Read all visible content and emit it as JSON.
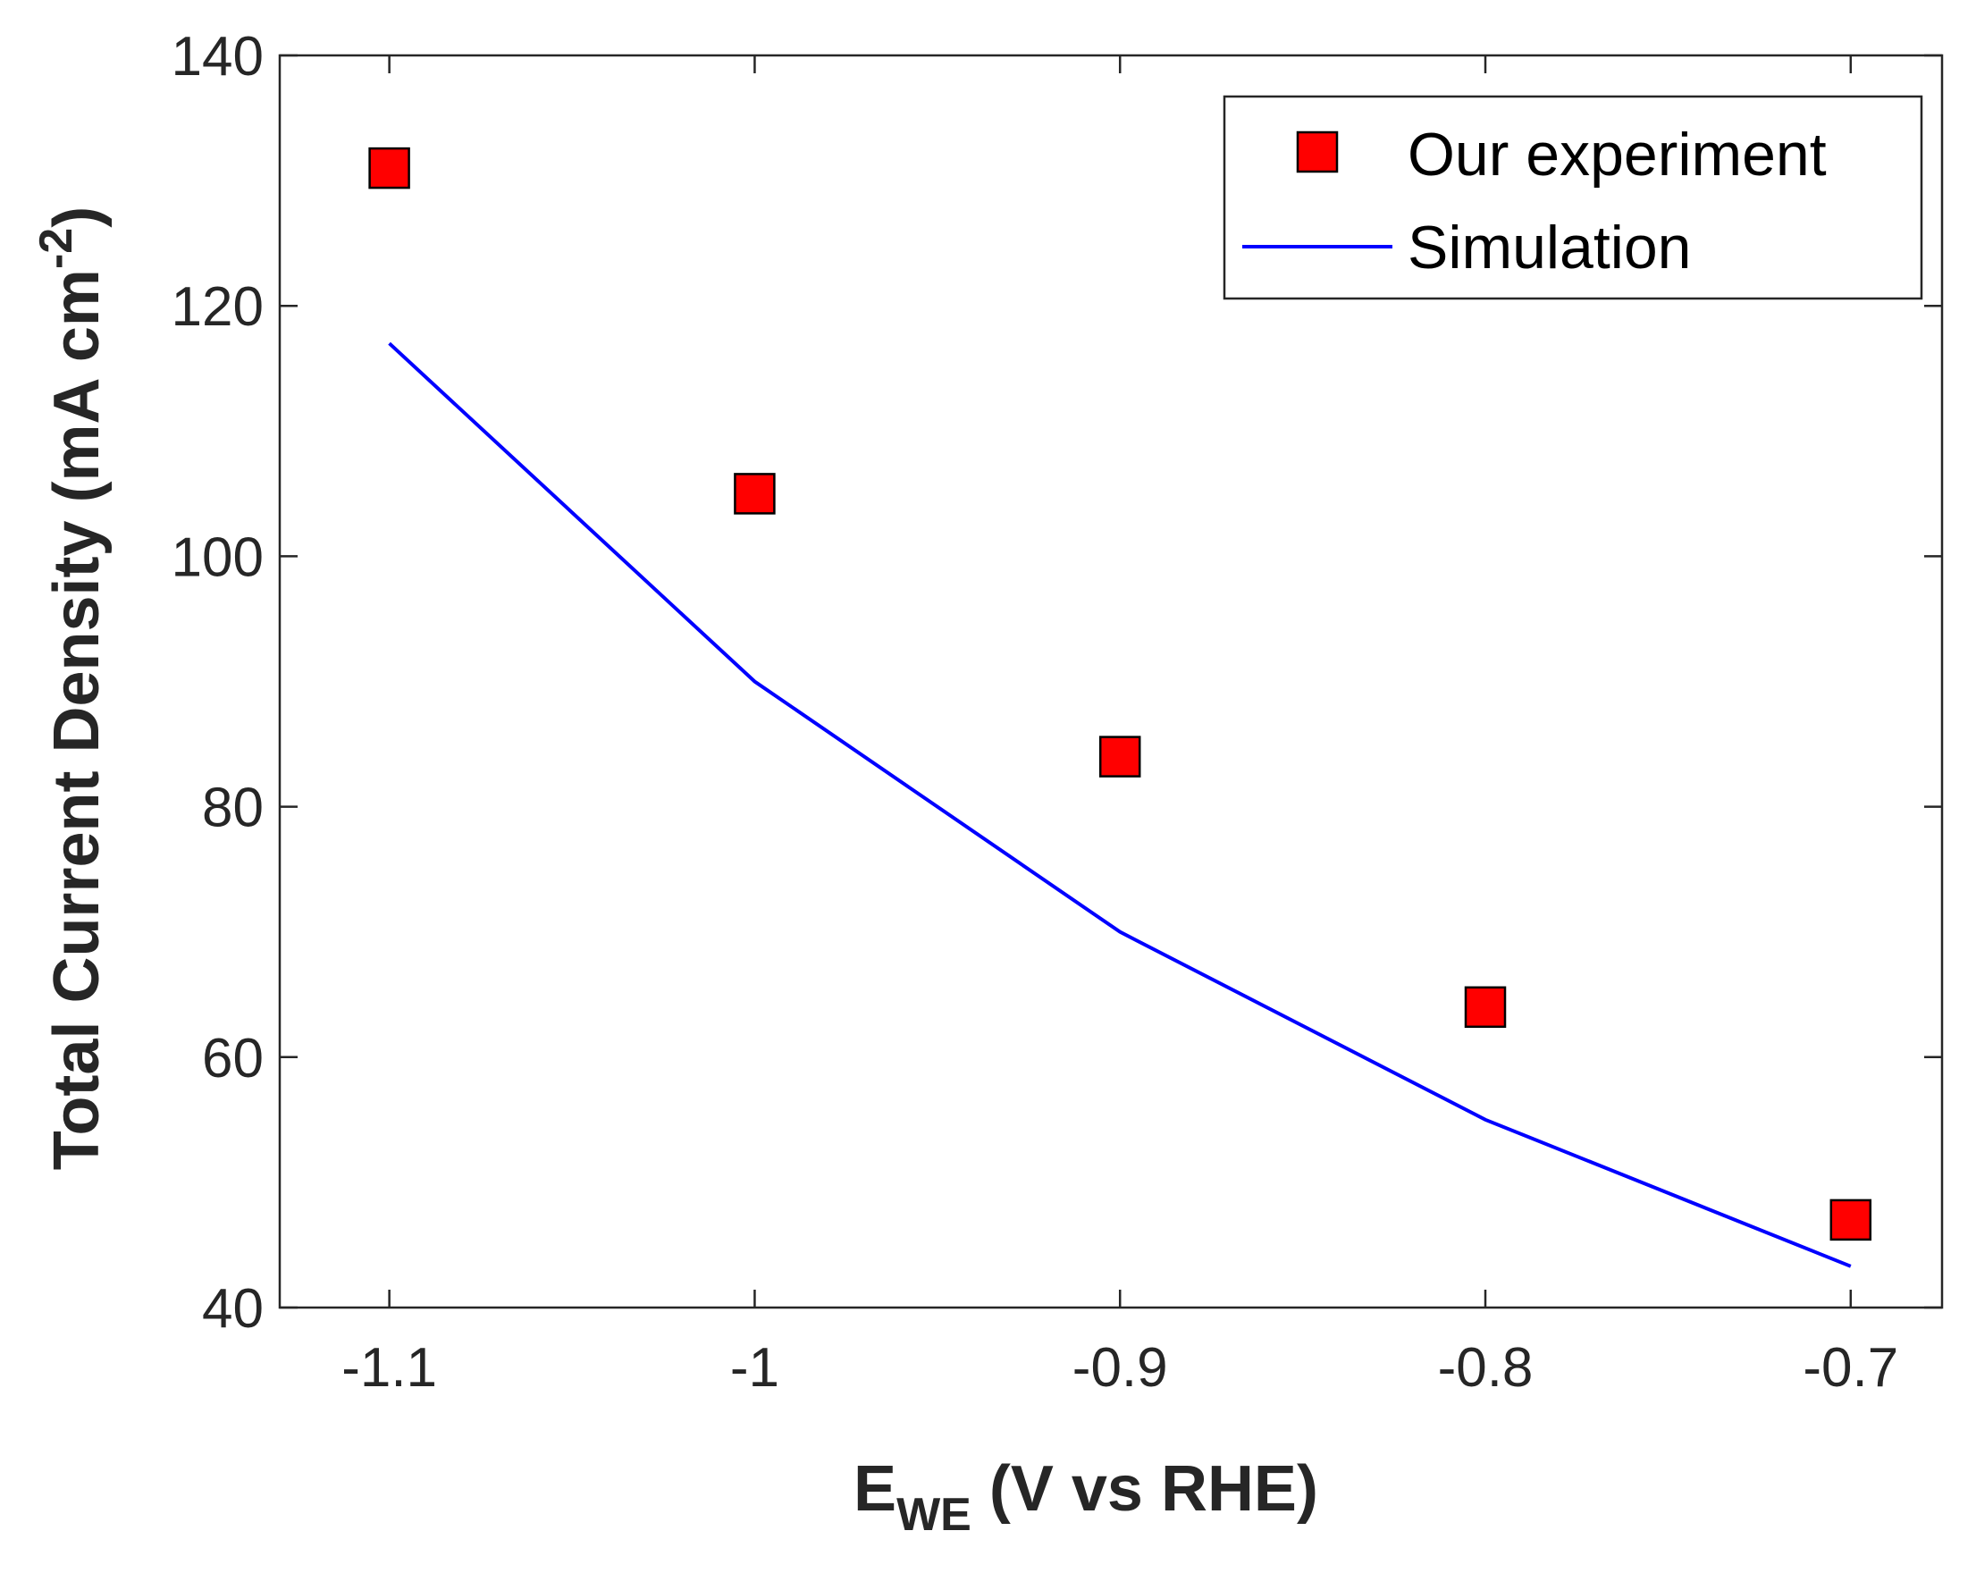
{
  "chart_data": {
    "type": "scatter",
    "title": "",
    "xlabel": {
      "main": "E",
      "subscript": "WE",
      "rest": " (V vs RHE)"
    },
    "ylabel": {
      "main": "Total Current Density (mA cm",
      "superscript": "-2",
      "end": ")"
    },
    "xlim": [
      -1.13,
      -0.675
    ],
    "ylim": [
      40,
      140
    ],
    "xticks": [
      -1.1,
      -1.0,
      -0.9,
      -0.8,
      -0.7
    ],
    "xtick_labels": [
      "-1.1",
      "-1",
      "-0.9",
      "-0.8",
      "-0.7"
    ],
    "yticks": [
      40,
      60,
      80,
      100,
      120,
      140
    ],
    "ytick_labels": [
      "40",
      "60",
      "80",
      "100",
      "120",
      "140"
    ],
    "grid": false,
    "legend_position": "top-right",
    "series": [
      {
        "name": "Our experiment",
        "kind": "scatter",
        "marker": "square",
        "color": "#ff0000",
        "x": [
          -1.1,
          -1.0,
          -0.9,
          -0.8,
          -0.7
        ],
        "y": [
          131,
          105,
          84,
          64,
          47
        ]
      },
      {
        "name": "Simulation",
        "kind": "line",
        "color": "#0000ff",
        "x": [
          -1.1,
          -1.0,
          -0.9,
          -0.8,
          -0.7
        ],
        "y": [
          117,
          90,
          70,
          55,
          43.3
        ]
      }
    ]
  }
}
